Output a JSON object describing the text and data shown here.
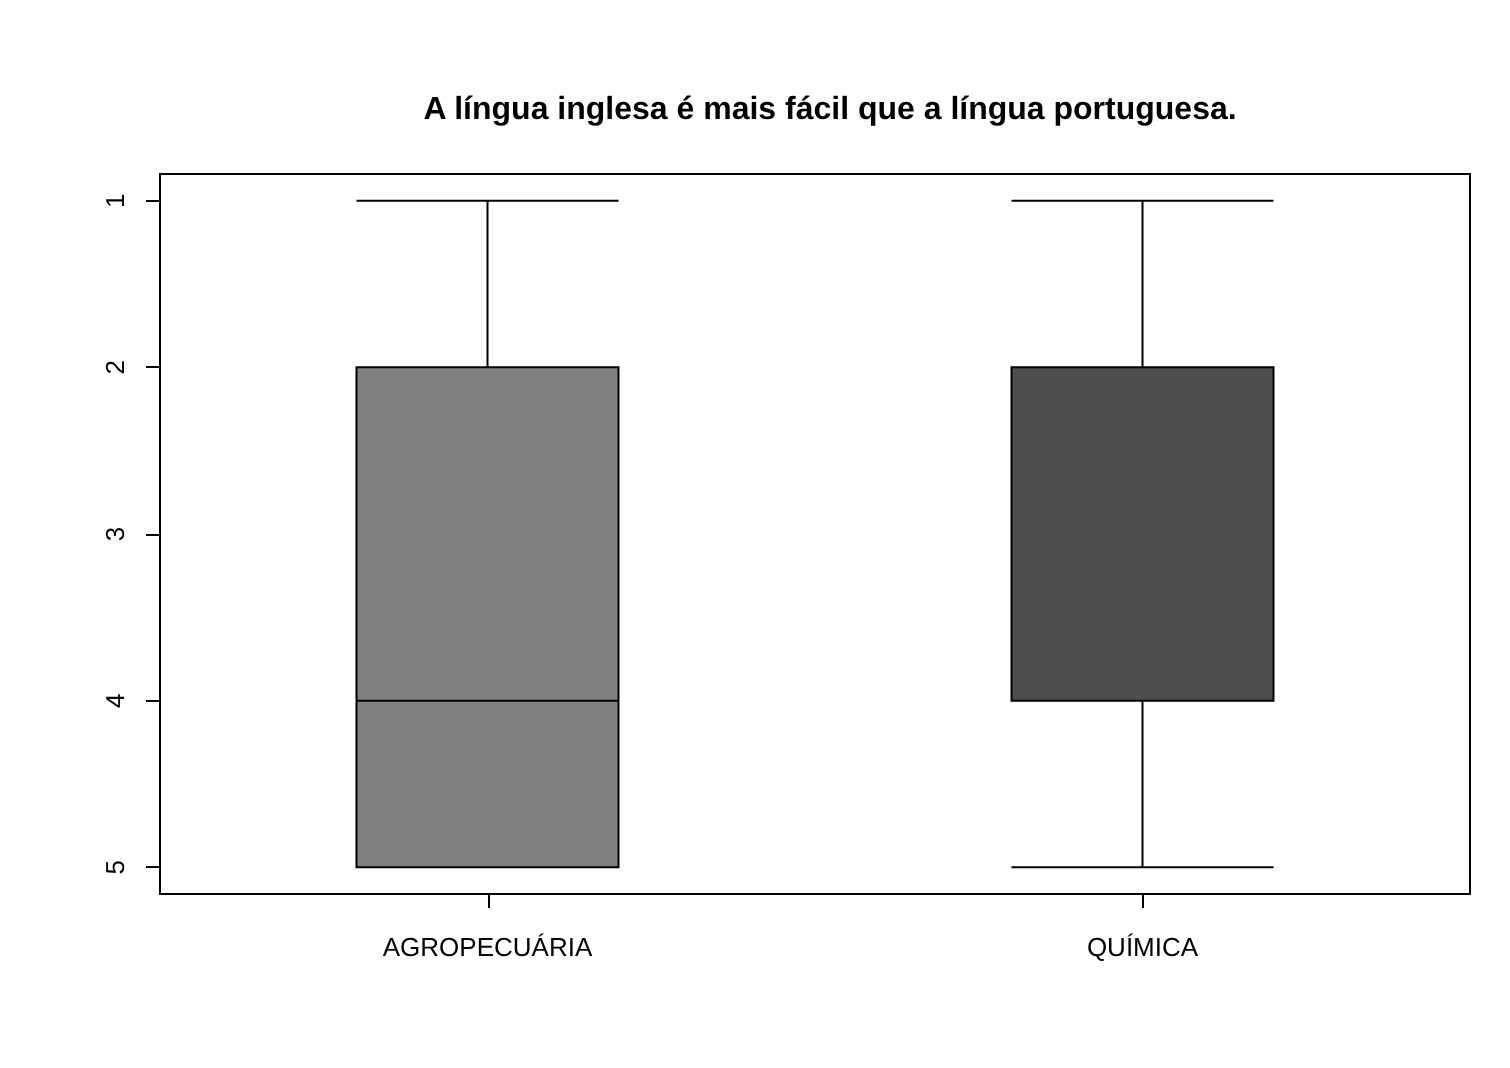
{
  "chart_data": {
    "type": "box",
    "title": "A língua inglesa é mais fácil que a língua portuguesa.",
    "categories": [
      "AGROPECUÁRIA",
      "QUÍMICA"
    ],
    "boxes": [
      {
        "low": 1,
        "q1": 2,
        "median": 4,
        "q3": 5,
        "high": 5
      },
      {
        "low": 1,
        "q1": 2,
        "median": 2,
        "q3": 4,
        "high": 5
      }
    ],
    "colors": [
      "#808080",
      "#4d4d4d"
    ],
    "ylim": [
      5.16,
      0.84
    ],
    "yticks": [
      1,
      2,
      3,
      4,
      5
    ]
  }
}
